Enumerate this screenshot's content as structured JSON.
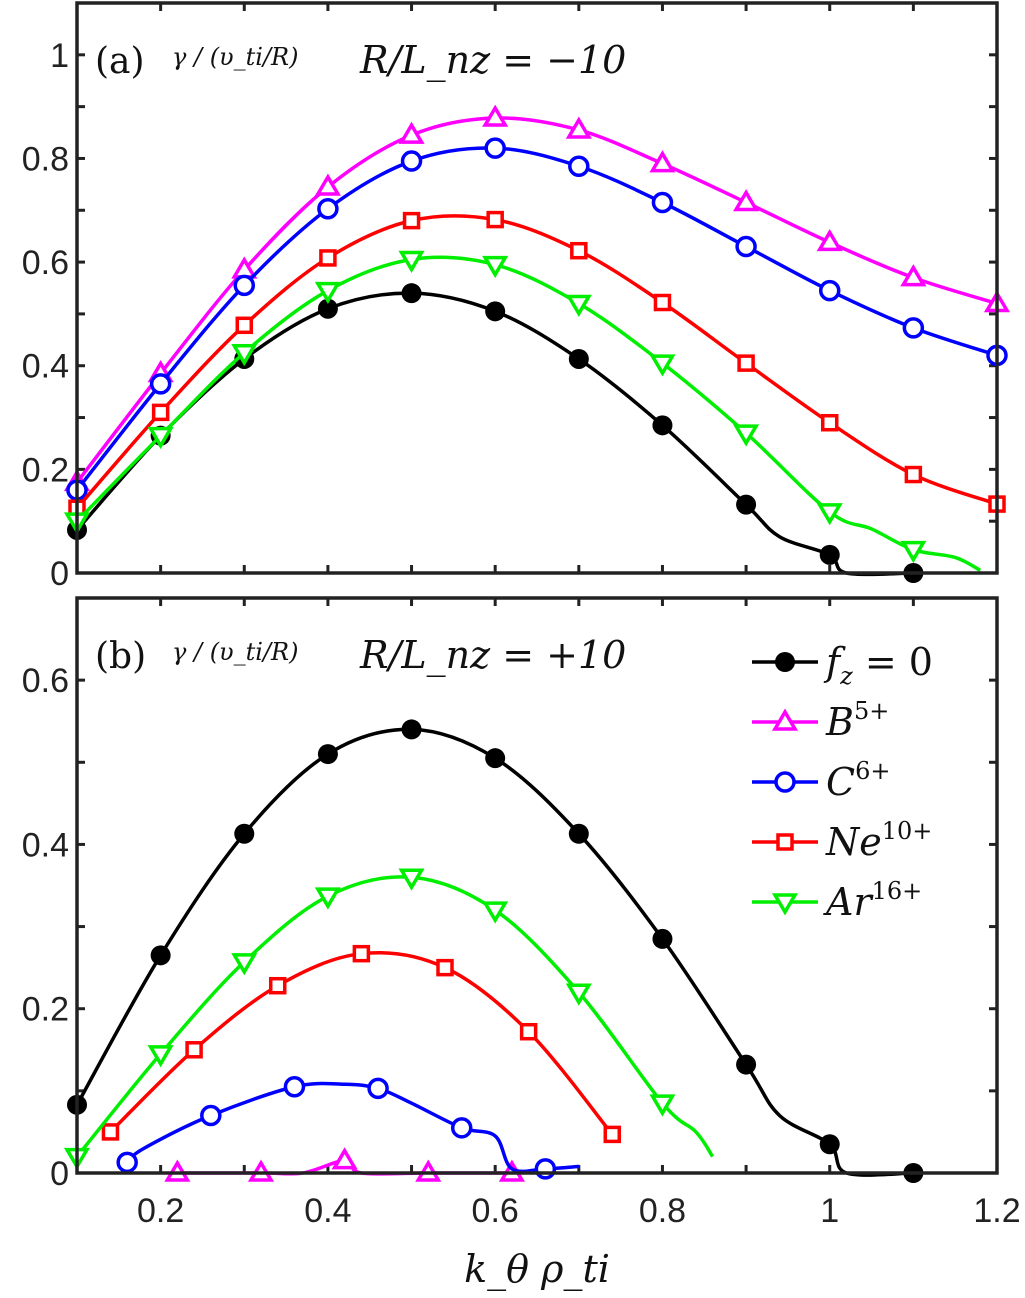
{
  "chart_data": [
    {
      "type": "line",
      "panel_label": "(a)",
      "ylabel": "γ / (υ_ti/R)",
      "annotation": "R/L_nz = −10",
      "xlim": [
        0.1,
        1.2
      ],
      "ylim": [
        0,
        1.1
      ],
      "yticks": [
        "0",
        "0.2",
        "0.4",
        "0.6",
        "0.8",
        "1"
      ],
      "ytick_values": [
        0,
        0.2,
        0.4,
        0.6,
        0.8,
        1
      ],
      "series": [
        {
          "name": "f_z = 0",
          "color": "#000000",
          "marker": "filled-circle",
          "x": [
            0.1,
            0.2,
            0.3,
            0.4,
            0.5,
            0.6,
            0.7,
            0.8,
            0.9,
            0.94,
            1.0,
            1.02,
            1.1
          ],
          "y": [
            0.083,
            0.265,
            0.413,
            0.51,
            0.54,
            0.505,
            0.413,
            0.285,
            0.132,
            0.07,
            0.035,
            0,
            0
          ],
          "markers": [
            1,
            1,
            1,
            1,
            1,
            1,
            1,
            1,
            1,
            0,
            1,
            0,
            1
          ]
        },
        {
          "name": "B^5+",
          "color": "#ff00ff",
          "marker": "triangle-up",
          "x": [
            0.1,
            0.2,
            0.3,
            0.4,
            0.5,
            0.6,
            0.7,
            0.8,
            0.9,
            1.0,
            1.1,
            1.2
          ],
          "y": [
            0.175,
            0.385,
            0.585,
            0.745,
            0.845,
            0.878,
            0.855,
            0.79,
            0.715,
            0.638,
            0.57,
            0.52
          ],
          "markers": [
            1,
            1,
            1,
            1,
            1,
            1,
            1,
            1,
            1,
            1,
            1,
            1
          ]
        },
        {
          "name": "C^6+",
          "color": "#0000ff",
          "marker": "circle",
          "x": [
            0.1,
            0.2,
            0.3,
            0.4,
            0.5,
            0.6,
            0.7,
            0.8,
            0.9,
            1.0,
            1.1,
            1.2
          ],
          "y": [
            0.16,
            0.365,
            0.555,
            0.703,
            0.795,
            0.82,
            0.785,
            0.715,
            0.63,
            0.545,
            0.473,
            0.42
          ],
          "markers": [
            1,
            1,
            1,
            1,
            1,
            1,
            1,
            1,
            1,
            1,
            1,
            1
          ]
        },
        {
          "name": "Ne^10+",
          "color": "#ff0000",
          "marker": "square",
          "x": [
            0.1,
            0.2,
            0.3,
            0.4,
            0.5,
            0.6,
            0.7,
            0.8,
            0.9,
            1.0,
            1.1,
            1.2
          ],
          "y": [
            0.125,
            0.31,
            0.478,
            0.608,
            0.68,
            0.682,
            0.622,
            0.522,
            0.405,
            0.29,
            0.19,
            0.133
          ],
          "markers": [
            1,
            1,
            1,
            1,
            1,
            1,
            1,
            1,
            1,
            1,
            1,
            1
          ]
        },
        {
          "name": "Ar^16+",
          "color": "#00ee00",
          "marker": "triangle-down",
          "x": [
            0.1,
            0.2,
            0.3,
            0.4,
            0.5,
            0.6,
            0.7,
            0.8,
            0.9,
            1.0,
            1.05,
            1.1,
            1.15,
            1.18
          ],
          "y": [
            0.1,
            0.265,
            0.425,
            0.545,
            0.605,
            0.595,
            0.52,
            0.405,
            0.27,
            0.118,
            0.085,
            0.045,
            0.03,
            0.005
          ],
          "markers": [
            1,
            1,
            1,
            1,
            1,
            1,
            1,
            1,
            1,
            1,
            0,
            1,
            0,
            0
          ]
        }
      ]
    },
    {
      "type": "line",
      "panel_label": "(b)",
      "ylabel": "γ / (υ_ti/R)",
      "annotation": "R/L_nz = +10",
      "xlim": [
        0.1,
        1.2
      ],
      "ylim": [
        0,
        0.7
      ],
      "yticks": [
        "0",
        "0.2",
        "0.4",
        "0.6"
      ],
      "ytick_values": [
        0,
        0.2,
        0.4,
        0.6
      ],
      "xlabel": "k_θ ρ_ti",
      "xticks": [
        "0.2",
        "0.4",
        "0.6",
        "0.8",
        "1",
        "1.2"
      ],
      "xtick_values": [
        0.2,
        0.4,
        0.6,
        0.8,
        1.0,
        1.2
      ],
      "legend_position": "top-right",
      "series": [
        {
          "name": "f_z = 0",
          "color": "#000000",
          "marker": "filled-circle",
          "x": [
            0.1,
            0.2,
            0.3,
            0.4,
            0.5,
            0.6,
            0.7,
            0.8,
            0.9,
            0.94,
            1.0,
            1.02,
            1.1
          ],
          "y": [
            0.083,
            0.265,
            0.413,
            0.51,
            0.54,
            0.505,
            0.413,
            0.285,
            0.132,
            0.07,
            0.035,
            0,
            0
          ],
          "markers": [
            1,
            1,
            1,
            1,
            1,
            1,
            1,
            1,
            1,
            0,
            1,
            0,
            1
          ]
        },
        {
          "name": "B^5+",
          "color": "#ff00ff",
          "marker": "triangle-up",
          "x": [
            0.22,
            0.32,
            0.37,
            0.42,
            0.44,
            0.52,
            0.62
          ],
          "y": [
            0,
            0,
            0,
            0.015,
            0,
            0,
            0
          ],
          "markers": [
            1,
            1,
            0,
            1,
            0,
            1,
            1
          ]
        },
        {
          "name": "C^6+",
          "color": "#0000ff",
          "marker": "circle",
          "x": [
            0.16,
            0.18,
            0.26,
            0.36,
            0.42,
            0.46,
            0.5,
            0.56,
            0.6,
            0.62,
            0.66,
            0.7
          ],
          "y": [
            0.013,
            0.03,
            0.07,
            0.105,
            0.108,
            0.103,
            0.085,
            0.055,
            0.045,
            0.005,
            0.005,
            0.008
          ],
          "markers": [
            1,
            0,
            1,
            1,
            0,
            1,
            0,
            1,
            0,
            0,
            1,
            0
          ]
        },
        {
          "name": "Ne^10+",
          "color": "#ff0000",
          "marker": "square",
          "x": [
            0.14,
            0.24,
            0.34,
            0.44,
            0.54,
            0.64,
            0.74
          ],
          "y": [
            0.05,
            0.15,
            0.228,
            0.267,
            0.25,
            0.172,
            0.047
          ],
          "markers": [
            1,
            1,
            1,
            1,
            1,
            1,
            1
          ]
        },
        {
          "name": "Ar^16+",
          "color": "#00ee00",
          "marker": "triangle-down",
          "x": [
            0.1,
            0.2,
            0.3,
            0.4,
            0.5,
            0.6,
            0.7,
            0.8,
            0.84,
            0.86
          ],
          "y": [
            0.02,
            0.145,
            0.257,
            0.337,
            0.36,
            0.32,
            0.22,
            0.085,
            0.05,
            0.02
          ],
          "markers": [
            1,
            1,
            1,
            1,
            1,
            1,
            1,
            1,
            0,
            0
          ]
        }
      ]
    }
  ],
  "legend": [
    {
      "base": "f",
      "sub": "z",
      "tail": " = 0",
      "sup": ""
    },
    {
      "base": "B",
      "sub": "",
      "tail": "",
      "sup": "5+"
    },
    {
      "base": "C",
      "sub": "",
      "tail": "",
      "sup": "6+"
    },
    {
      "base": "Ne",
      "sub": "",
      "tail": "",
      "sup": "10+"
    },
    {
      "base": "Ar",
      "sub": "",
      "tail": "",
      "sup": "16+"
    }
  ]
}
